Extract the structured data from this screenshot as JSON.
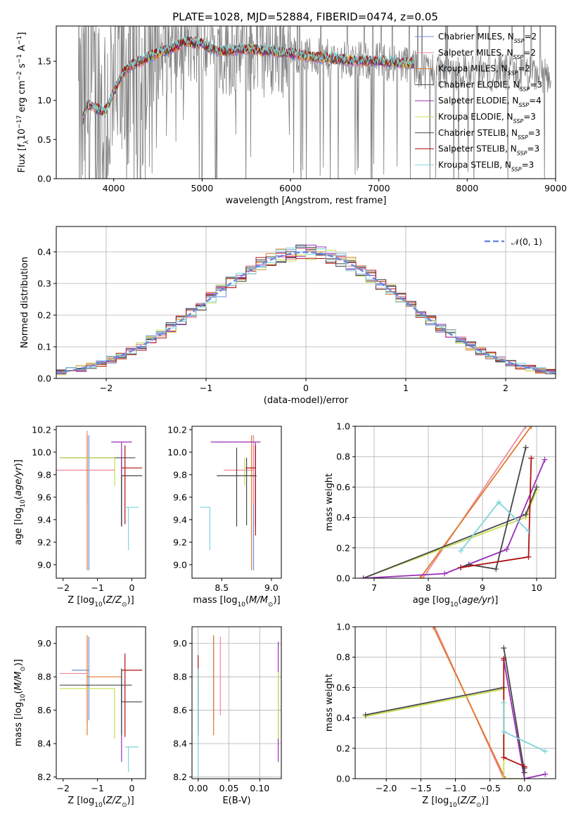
{
  "figure": {
    "title": "PLATE=1028, MJD=52884, FIBERID=0474, z=0.05"
  },
  "colors": {
    "Chabrier MILES": "#6b8fe0",
    "Salpeter MILES": "#ee8a9a",
    "Kroupa MILES": "#e07a2a",
    "Chabrier ELODIE": "#4a4a4a",
    "Salpeter ELODIE": "#9a30b8",
    "Kroupa ELODIE": "#c8de50",
    "Chabrier STELIB": "#444444",
    "Salpeter STELIB": "#b01010",
    "Kroupa STELIB": "#7ed6dc",
    "data": "#7f7f7f",
    "normal": "#6a8ae0"
  },
  "chart_data": [
    {
      "id": "spectrum",
      "type": "line",
      "xlabel": "wavelength [Angstrom, rest frame]",
      "ylabel": "Flux [f_λ10^-17 erg cm^-2 s^-1 A^-1]",
      "xlim": [
        3350,
        9000
      ],
      "ylim": [
        0,
        1.95
      ],
      "xticks": [
        4000,
        5000,
        6000,
        7000,
        8000,
        9000
      ],
      "yticks": [
        0.0,
        0.5,
        1.0,
        1.5
      ],
      "legend_position": "upper right",
      "legend": [
        {
          "name": "Chabrier MILES",
          "label": "Chabrier MILES, N",
          "sub": "SSP",
          "suffix": "=2"
        },
        {
          "name": "Salpeter MILES",
          "label": "Salpeter MILES, N",
          "sub": "SSP",
          "suffix": "=2"
        },
        {
          "name": "Kroupa MILES",
          "label": "Kroupa MILES, N",
          "sub": "SSP",
          "suffix": "=2"
        },
        {
          "name": "Chabrier ELODIE",
          "label": "Chabrier ELODIE, N",
          "sub": "SSP",
          "suffix": "=3"
        },
        {
          "name": "Salpeter ELODIE",
          "label": "Salpeter ELODIE, N",
          "sub": "SSP",
          "suffix": "=4"
        },
        {
          "name": "Kroupa ELODIE",
          "label": "Kroupa ELODIE, N",
          "sub": "SSP",
          "suffix": "=3"
        },
        {
          "name": "Chabrier STELIB",
          "label": "Chabrier STELIB, N",
          "sub": "SSP",
          "suffix": "=3"
        },
        {
          "name": "Salpeter STELIB",
          "label": "Salpeter STELIB, N",
          "sub": "SSP",
          "suffix": "=3"
        },
        {
          "name": "Kroupa STELIB",
          "label": "Kroupa STELIB, N",
          "sub": "SSP",
          "suffix": "=3"
        }
      ],
      "model_continuum": {
        "x": [
          3650,
          3700,
          3800,
          3900,
          4000,
          4100,
          4200,
          4300,
          4400,
          4500,
          4700,
          4800,
          5000,
          5200,
          5500,
          5800,
          6000,
          6300,
          6600,
          6800,
          7000,
          7200,
          7400
        ],
        "y": [
          0.75,
          0.95,
          0.9,
          0.85,
          1.1,
          1.35,
          1.45,
          1.5,
          1.55,
          1.6,
          1.68,
          1.75,
          1.72,
          1.62,
          1.66,
          1.62,
          1.6,
          1.55,
          1.52,
          1.5,
          1.5,
          1.48,
          1.47
        ]
      }
    },
    {
      "id": "residuals",
      "type": "histogram",
      "xlabel": "(data-model)/error",
      "ylabel": "Normed distribution",
      "xlim": [
        -2.5,
        2.5
      ],
      "ylim": [
        0,
        0.48
      ],
      "xticks": [
        -2,
        -1,
        0,
        1,
        2
      ],
      "yticks": [
        0.0,
        0.1,
        0.2,
        0.3,
        0.4
      ],
      "grid": true,
      "legend_position": "upper right",
      "legend_label": "𝒩(0, 1)",
      "bin_width": 0.1,
      "bin_start": -2.5
    },
    {
      "id": "age_vs_Z",
      "type": "scatter",
      "xlabel": "Z [log10(Z/Z☉)]",
      "ylabel": "age  [log10(age/yr)]",
      "xlim": [
        -2.2,
        0.4
      ],
      "ylim": [
        8.88,
        10.23
      ],
      "xticks": [
        -2,
        -1,
        0
      ],
      "yticks": [
        9.0,
        9.2,
        9.4,
        9.6,
        9.8,
        10.0,
        10.2
      ],
      "points": [
        {
          "model": "Chabrier MILES",
          "x": -1.25,
          "xerr": [
            0.0,
            0.0
          ],
          "y": 9.95,
          "yerr": [
            1.0,
            0.2
          ]
        },
        {
          "model": "Salpeter MILES",
          "x": -1.3,
          "xerr": [
            0.9,
            0.8
          ],
          "y": 9.84,
          "yerr": [
            0.3,
            0.35
          ]
        },
        {
          "model": "Kroupa MILES",
          "x": -1.3,
          "xerr": [
            0.0,
            0.0
          ],
          "y": 9.95,
          "yerr": [
            1.0,
            0.2
          ]
        },
        {
          "model": "Chabrier ELODIE",
          "x": -0.3,
          "xerr": [
            1.8,
            0.4
          ],
          "y": 9.95,
          "yerr": [
            0.6,
            0.0
          ]
        },
        {
          "model": "Salpeter ELODIE",
          "x": -0.3,
          "xerr": [
            0.3,
            0.3
          ],
          "y": 10.09,
          "yerr": [
            0.75,
            0.0
          ]
        },
        {
          "model": "Kroupa ELODIE",
          "x": -0.5,
          "xerr": [
            1.6,
            0.0
          ],
          "y": 9.95,
          "yerr": [
            0.25,
            0.0
          ]
        },
        {
          "model": "Chabrier STELIB",
          "x": -0.3,
          "xerr": [
            0.0,
            0.6
          ],
          "y": 9.79,
          "yerr": [
            0.45,
            0.0
          ]
        },
        {
          "model": "Salpeter STELIB",
          "x": -0.2,
          "xerr": [
            0.1,
            0.5
          ],
          "y": 9.86,
          "yerr": [
            0.5,
            0.2
          ]
        },
        {
          "model": "Kroupa STELIB",
          "x": -0.1,
          "xerr": [
            0.1,
            0.3
          ],
          "y": 9.51,
          "yerr": [
            0.38,
            0.0
          ]
        }
      ]
    },
    {
      "id": "age_vs_mass",
      "type": "scatter",
      "xlabel": "mass [log10(M/M☉)]",
      "ylabel": "",
      "xlim": [
        8.2,
        9.1
      ],
      "ylim": [
        8.88,
        10.23
      ],
      "xticks": [
        8.5,
        9.0
      ],
      "yticks": [
        9.0,
        9.2,
        9.4,
        9.6,
        9.8,
        10.0,
        10.2
      ],
      "points": [
        {
          "model": "Chabrier MILES",
          "x": 8.82,
          "xerr": [
            0.0,
            0.0
          ],
          "y": 9.95,
          "yerr": [
            1.0,
            0.2
          ]
        },
        {
          "model": "Salpeter MILES",
          "x": 8.82,
          "xerr": [
            0.3,
            0.0
          ],
          "y": 9.84,
          "yerr": [
            0.3,
            0.3
          ]
        },
        {
          "model": "Kroupa MILES",
          "x": 8.8,
          "xerr": [
            0.0,
            0.0
          ],
          "y": 9.95,
          "yerr": [
            1.0,
            0.2
          ]
        },
        {
          "model": "Chabrier ELODIE",
          "x": 8.75,
          "xerr": [
            0.0,
            0.0
          ],
          "y": 9.95,
          "yerr": [
            0.6,
            0.0
          ]
        },
        {
          "model": "Salpeter ELODIE",
          "x": 8.84,
          "xerr": [
            0.45,
            0.05
          ],
          "y": 10.09,
          "yerr": [
            0.75,
            0.0
          ]
        },
        {
          "model": "Kroupa ELODIE",
          "x": 8.73,
          "xerr": [
            0.0,
            0.0
          ],
          "y": 9.95,
          "yerr": [
            0.25,
            0.0
          ]
        },
        {
          "model": "Chabrier STELIB",
          "x": 8.65,
          "xerr": [
            0.2,
            0.2
          ],
          "y": 9.79,
          "yerr": [
            0.45,
            0.25
          ]
        },
        {
          "model": "Salpeter STELIB",
          "x": 8.84,
          "xerr": [
            0.1,
            0.0
          ],
          "y": 9.86,
          "yerr": [
            0.6,
            0.2
          ]
        },
        {
          "model": "Kroupa STELIB",
          "x": 8.38,
          "xerr": [
            0.1,
            0.0
          ],
          "y": 9.51,
          "yerr": [
            0.38,
            0.0
          ]
        }
      ]
    },
    {
      "id": "weight_vs_age",
      "type": "line",
      "xlabel": "age  [log10(age/yr)]",
      "ylabel": "mass weight",
      "xlim": [
        6.65,
        10.35
      ],
      "ylim": [
        0,
        1.0
      ],
      "xticks": [
        7,
        8,
        9,
        10
      ],
      "yticks": [
        0.0,
        0.2,
        0.4,
        0.6,
        0.8,
        1.0
      ],
      "grid": true,
      "series": [
        {
          "name": "Salpeter MILES",
          "x": [
            7.9,
            9.8
          ],
          "y": [
            0.0,
            1.0
          ]
        },
        {
          "name": "Kroupa MILES",
          "x": [
            7.85,
            9.9
          ],
          "y": [
            0.0,
            1.0
          ]
        },
        {
          "name": "Kroupa ELODIE",
          "x": [
            6.8,
            9.8,
            10.0
          ],
          "y": [
            0.0,
            0.4,
            0.58
          ]
        },
        {
          "name": "Chabrier ELODIE",
          "x": [
            6.8,
            9.8,
            10.0
          ],
          "y": [
            0.0,
            0.42,
            0.6
          ]
        },
        {
          "name": "Salpeter ELODIE",
          "x": [
            6.8,
            8.3,
            9.45,
            10.15
          ],
          "y": [
            0.0,
            0.03,
            0.19,
            0.78
          ]
        },
        {
          "name": "Chabrier STELIB",
          "x": [
            8.6,
            8.75,
            9.25,
            9.8
          ],
          "y": [
            0.07,
            0.09,
            0.06,
            0.86
          ]
        },
        {
          "name": "Salpeter STELIB",
          "x": [
            8.6,
            9.85,
            9.9
          ],
          "y": [
            0.07,
            0.14,
            0.79
          ]
        },
        {
          "name": "Kroupa STELIB",
          "x": [
            8.6,
            9.3,
            9.85
          ],
          "y": [
            0.18,
            0.5,
            0.31
          ]
        }
      ]
    },
    {
      "id": "mass_vs_Z",
      "type": "scatter",
      "xlabel": "Z [log10(Z/Z☉)]",
      "ylabel": "mass [log10(M/M☉)]",
      "xlim": [
        -2.2,
        0.4
      ],
      "ylim": [
        8.19,
        9.1
      ],
      "xticks": [
        -2,
        -1,
        0
      ],
      "yticks": [
        8.2,
        8.4,
        8.6,
        8.8,
        9.0
      ],
      "points": [
        {
          "model": "Chabrier MILES",
          "x": -1.25,
          "xerr": [
            0.5,
            0.0
          ],
          "y": 8.84,
          "yerr": [
            0.3,
            0.2
          ]
        },
        {
          "model": "Salpeter MILES",
          "x": -1.3,
          "xerr": [
            0.8,
            0.0
          ],
          "y": 8.82,
          "yerr": [
            0.3,
            0.2
          ]
        },
        {
          "model": "Kroupa MILES",
          "x": -1.3,
          "xerr": [
            0.0,
            1.0
          ],
          "y": 8.8,
          "yerr": [
            0.35,
            0.25
          ]
        },
        {
          "model": "Chabrier ELODIE",
          "x": -0.3,
          "xerr": [
            1.8,
            0.3
          ],
          "y": 8.75,
          "yerr": [
            0.1,
            0.0
          ]
        },
        {
          "model": "Salpeter ELODIE",
          "x": -0.3,
          "xerr": [
            0.0,
            0.0
          ],
          "y": 8.84,
          "yerr": [
            0.55,
            0.0
          ]
        },
        {
          "model": "Kroupa ELODIE",
          "x": -0.5,
          "xerr": [
            1.6,
            0.0
          ],
          "y": 8.73,
          "yerr": [
            0.3,
            0.0
          ]
        },
        {
          "model": "Chabrier STELIB",
          "x": -0.3,
          "xerr": [
            0.0,
            0.6
          ],
          "y": 8.65,
          "yerr": [
            0.2,
            0.2
          ]
        },
        {
          "model": "Salpeter STELIB",
          "x": -0.2,
          "xerr": [
            0.1,
            0.5
          ],
          "y": 8.84,
          "yerr": [
            0.4,
            0.1
          ]
        },
        {
          "model": "Kroupa STELIB",
          "x": -0.1,
          "xerr": [
            0.1,
            0.3
          ],
          "y": 8.38,
          "yerr": [
            0.15,
            0.0
          ]
        }
      ]
    },
    {
      "id": "mass_vs_ebv",
      "type": "scatter",
      "xlabel": "E(B-V)",
      "ylabel": "",
      "xlim": [
        -0.01,
        0.135
      ],
      "ylim": [
        8.19,
        9.1
      ],
      "xticks": [
        0.0,
        0.05,
        0.1
      ],
      "yticks": [
        8.2,
        8.4,
        8.6,
        8.8,
        9.0
      ],
      "grid": true,
      "points": [
        {
          "model": "Chabrier MILES",
          "x": 0.025,
          "y": 8.84,
          "yerr": [
            0.3,
            0.2
          ]
        },
        {
          "model": "Salpeter MILES",
          "x": 0.036,
          "y": 8.82,
          "yerr": [
            0.25,
            0.22
          ]
        },
        {
          "model": "Kroupa MILES",
          "x": 0.025,
          "y": 8.8,
          "yerr": [
            0.35,
            0.25
          ]
        },
        {
          "model": "Chabrier ELODIE",
          "x": 0.0,
          "y": 8.75,
          "yerr": [
            0.3,
            0.0
          ]
        },
        {
          "model": "Salpeter ELODIE",
          "x": 0.13,
          "y": 8.84,
          "yerr": [
            0.55,
            0.17
          ]
        },
        {
          "model": "Kroupa ELODIE",
          "x": 0.13,
          "y": 8.73,
          "yerr": [
            0.3,
            0.1
          ]
        },
        {
          "model": "Chabrier STELIB",
          "x": 0.0,
          "y": 8.65,
          "yerr": [
            0.2,
            0.2
          ]
        },
        {
          "model": "Salpeter STELIB",
          "x": 0.0,
          "y": 8.84,
          "yerr": [
            0.1,
            0.09
          ]
        },
        {
          "model": "Kroupa STELIB",
          "x": 0.0,
          "y": 8.4,
          "yerr": [
            0.25,
            0.45
          ]
        }
      ]
    },
    {
      "id": "weight_vs_Z",
      "type": "line",
      "xlabel": "Z [log10(Z/Z☉)]",
      "ylabel": "mass weight",
      "xlim": [
        -2.45,
        0.45
      ],
      "ylim": [
        0,
        1.0
      ],
      "xticks": [
        -2.0,
        -1.5,
        -1.0,
        -0.5,
        0.0
      ],
      "yticks": [
        0.0,
        0.2,
        0.4,
        0.6,
        0.8,
        1.0
      ],
      "grid": true,
      "series": [
        {
          "name": "Salpeter MILES",
          "x": [
            -1.3,
            -0.3
          ],
          "y": [
            1.0,
            0.0
          ]
        },
        {
          "name": "Kroupa MILES",
          "x": [
            -1.32,
            -0.28
          ],
          "y": [
            1.0,
            0.0
          ]
        },
        {
          "name": "Kroupa ELODIE",
          "x": [
            -2.3,
            -0.3,
            -0.3,
            0.0
          ],
          "y": [
            0.41,
            0.59,
            0.0,
            0.0
          ]
        },
        {
          "name": "Chabrier ELODIE",
          "x": [
            -2.3,
            -0.3
          ],
          "y": [
            0.42,
            0.6
          ]
        },
        {
          "name": "Salpeter ELODIE",
          "x": [
            -0.3,
            0.0,
            0.3
          ],
          "y": [
            0.78,
            0.0,
            0.03
          ]
        },
        {
          "name": "Chabrier STELIB",
          "x": [
            -0.3,
            0.0,
            0.0
          ],
          "y": [
            0.86,
            0.04,
            0.07
          ]
        },
        {
          "name": "Salpeter STELIB",
          "x": [
            -0.3,
            -0.3,
            0.0
          ],
          "y": [
            0.79,
            0.14,
            0.08
          ]
        },
        {
          "name": "Kroupa STELIB",
          "x": [
            -0.3,
            -0.3,
            0.3
          ],
          "y": [
            0.5,
            0.31,
            0.18
          ]
        }
      ]
    }
  ]
}
